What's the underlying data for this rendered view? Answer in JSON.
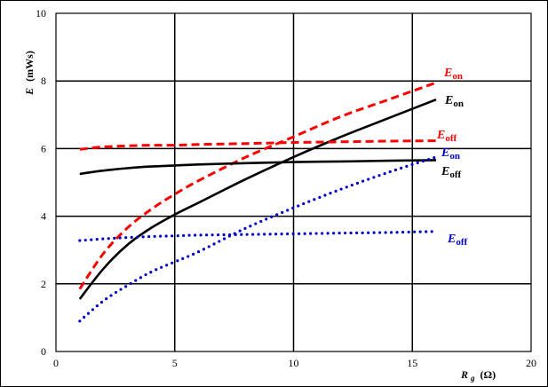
{
  "chart_data": {
    "type": "line",
    "title": "",
    "xlabel": "R",
    "xlabel_sub": "g",
    "xlabel_unit": "(Ω)",
    "ylabel": "E",
    "ylabel_unit": "(mWs)",
    "xlim": [
      0,
      20
    ],
    "ylim": [
      0,
      10
    ],
    "xticks": [
      0,
      5,
      10,
      15,
      20
    ],
    "yticks": [
      0,
      2,
      4,
      6,
      8,
      10
    ],
    "grid": true,
    "series": [
      {
        "name": "E_on",
        "label_main": "E",
        "label_sub": "on",
        "color": "#ff0000",
        "style": "dashed",
        "x": [
          1,
          2,
          3,
          4,
          5,
          6,
          8,
          10,
          12,
          14,
          16
        ],
        "y": [
          1.85,
          2.9,
          3.65,
          4.2,
          4.65,
          5.05,
          5.75,
          6.35,
          6.95,
          7.45,
          7.95
        ]
      },
      {
        "name": "E_on",
        "label_main": "E",
        "label_sub": "on",
        "color": "#000000",
        "style": "solid",
        "x": [
          1,
          2,
          3,
          4,
          5,
          6,
          8,
          10,
          12,
          14,
          16
        ],
        "y": [
          1.55,
          2.45,
          3.15,
          3.65,
          4.05,
          4.4,
          5.1,
          5.75,
          6.35,
          6.9,
          7.45
        ]
      },
      {
        "name": "E_off",
        "label_main": "E",
        "label_sub": "off",
        "color": "#ff0000",
        "style": "dashed",
        "x": [
          1,
          2,
          3,
          4,
          5,
          6,
          8,
          10,
          12,
          14,
          16
        ],
        "y": [
          5.98,
          6.05,
          6.08,
          6.1,
          6.1,
          6.12,
          6.15,
          6.18,
          6.2,
          6.22,
          6.23
        ]
      },
      {
        "name": "E_off",
        "label_main": "E",
        "label_sub": "off",
        "color": "#000000",
        "style": "solid",
        "x": [
          1,
          2,
          3,
          4,
          5,
          6,
          8,
          10,
          12,
          14,
          16
        ],
        "y": [
          5.25,
          5.35,
          5.42,
          5.47,
          5.5,
          5.53,
          5.57,
          5.6,
          5.62,
          5.64,
          5.66
        ]
      },
      {
        "name": "E_on",
        "label_main": "E",
        "label_sub": "on",
        "color": "#0000cc",
        "style": "dotted",
        "x": [
          1,
          2,
          3,
          4,
          5,
          6,
          8,
          10,
          12,
          14,
          16
        ],
        "y": [
          0.9,
          1.5,
          1.95,
          2.35,
          2.65,
          2.95,
          3.65,
          4.25,
          4.8,
          5.3,
          5.75
        ]
      },
      {
        "name": "E_off",
        "label_main": "E",
        "label_sub": "off",
        "color": "#0000cc",
        "style": "dotted",
        "x": [
          1,
          2,
          3,
          4,
          5,
          6,
          8,
          10,
          12,
          14,
          16
        ],
        "y": [
          3.28,
          3.33,
          3.37,
          3.4,
          3.42,
          3.44,
          3.46,
          3.48,
          3.5,
          3.52,
          3.55
        ]
      }
    ]
  }
}
